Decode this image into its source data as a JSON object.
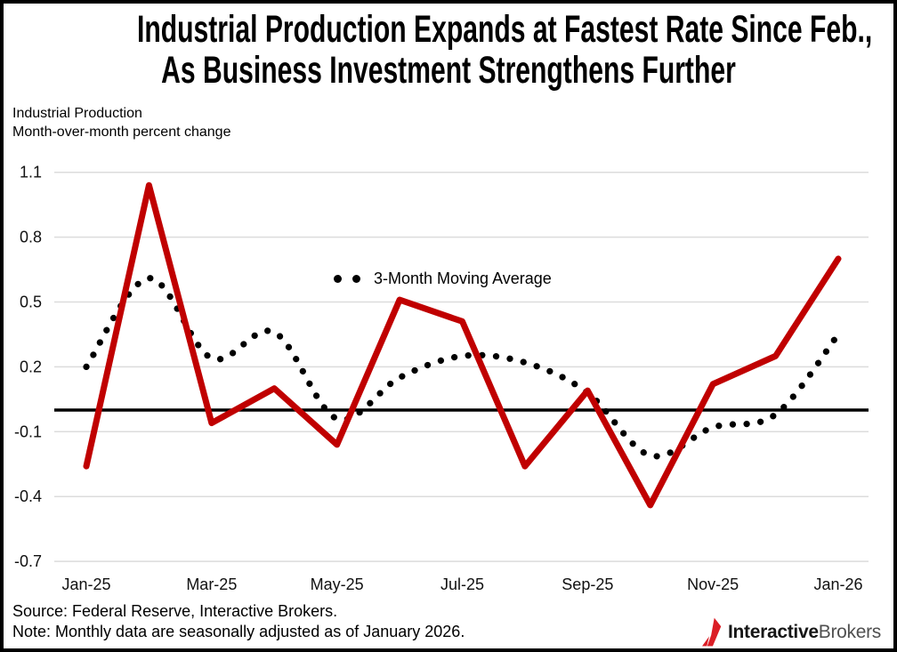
{
  "title": {
    "line1": "Industrial Production Expands at Fastest Rate Since Feb.,",
    "line2": "As Business Investment Strengthens Further"
  },
  "subtitle": {
    "line1": "Industrial Production",
    "line2": "Month-over-month percent change"
  },
  "legend": {
    "label": "3-Month Moving Average"
  },
  "footer": {
    "source": "Source: Federal Reserve, Interactive Brokers.",
    "note": "Note: Monthly data are seasonally adjusted as of January 2026."
  },
  "logo": {
    "bold": "Interactive",
    "light": "Brokers"
  },
  "chart_data": {
    "type": "line",
    "title": "Industrial Production Expands at Fastest Rate Since Feb., As Business Investment Strengthens Further",
    "ylabel": "Month-over-month percent change",
    "categories": [
      "Jan-25",
      "Feb-25",
      "Mar-25",
      "Apr-25",
      "May-25",
      "Jun-25",
      "Jul-25",
      "Aug-25",
      "Sep-25",
      "Oct-25",
      "Nov-25",
      "Dec-25",
      "Jan-26"
    ],
    "series": [
      {
        "name": "Industrial Production",
        "color": "#c00000",
        "line_style": "solid",
        "values": [
          -0.26,
          1.04,
          -0.06,
          0.1,
          -0.16,
          0.51,
          0.41,
          -0.26,
          0.09,
          -0.44,
          0.12,
          0.25,
          0.7
        ]
      },
      {
        "name": "3-Month Moving Average",
        "color": "#000000",
        "line_style": "dotted",
        "values": [
          0.2,
          0.61,
          0.24,
          0.36,
          -0.04,
          0.15,
          0.25,
          0.22,
          0.08,
          -0.21,
          -0.08,
          -0.02,
          0.35
        ]
      }
    ],
    "x_tick_labels": [
      "Jan-25",
      "Mar-25",
      "May-25",
      "Jul-25",
      "Sep-25",
      "Nov-25",
      "Jan-26"
    ],
    "y_ticks": [
      1.1,
      0.8,
      0.5,
      0.2,
      -0.1,
      -0.4,
      -0.7
    ],
    "ylim": [
      -0.7,
      1.1
    ],
    "zero_line": true,
    "grid": "horizontal",
    "gridline_color": "#dcdcdc",
    "legend_position": "inside-top-center"
  }
}
